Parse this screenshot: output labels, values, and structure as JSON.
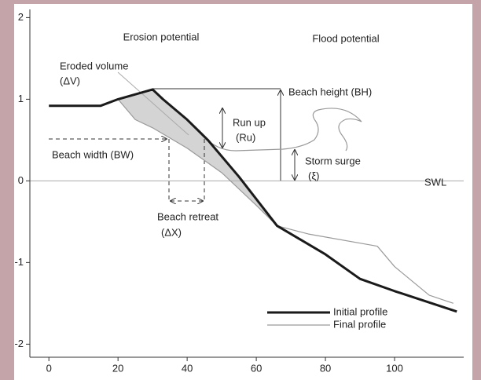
{
  "chart_data": {
    "type": "line",
    "x_series_note_free": null,
    "series": [
      {
        "name": "Initial profile",
        "color": "#1a1a1a",
        "x": [
          0,
          15,
          20,
          30,
          33,
          40,
          46,
          55,
          66,
          80,
          90,
          100,
          118
        ],
        "values": [
          0.92,
          0.92,
          1.0,
          1.12,
          1.0,
          0.75,
          0.5,
          0.05,
          -0.55,
          -0.9,
          -1.2,
          -1.35,
          -1.6
        ]
      },
      {
        "name": "Final profile",
        "color": "#9a9a9a",
        "x": [
          20,
          25,
          30,
          40,
          50,
          60,
          66,
          75,
          95,
          100,
          110,
          117
        ],
        "values": [
          1.0,
          0.75,
          0.65,
          0.4,
          0.1,
          -0.3,
          -0.55,
          -0.65,
          -0.8,
          -1.05,
          -1.4,
          -1.5
        ]
      }
    ],
    "annotations": [
      "Erosion potential",
      "Flood potential",
      "Eroded volume",
      "(ΔV)",
      "Beach height (BH)",
      "Run up",
      "(Ru)",
      "Beach width (BW)",
      "Storm surge",
      "(ξ)",
      "SWL",
      "Beach retreat",
      "(ΔX)"
    ],
    "xlim": [
      -5.5,
      120
    ],
    "ylim": [
      -2.16,
      2.1
    ],
    "xticks": [
      0,
      20,
      40,
      60,
      80,
      100
    ],
    "yticks": [
      -2,
      -1,
      0,
      1,
      2
    ],
    "grid": false
  }
}
